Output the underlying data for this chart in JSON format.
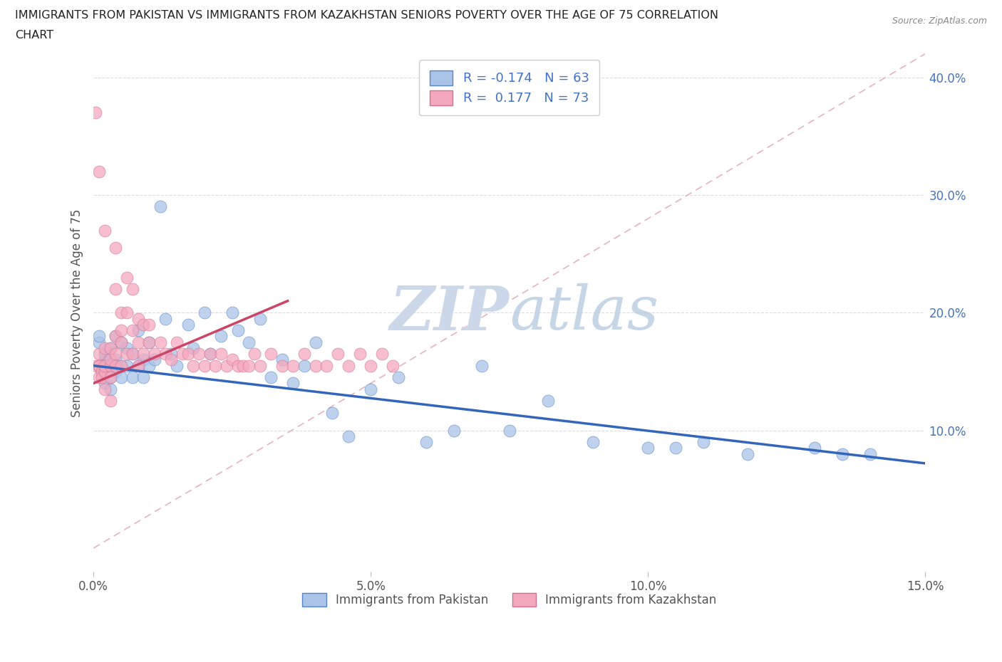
{
  "title_line1": "IMMIGRANTS FROM PAKISTAN VS IMMIGRANTS FROM KAZAKHSTAN SENIORS POVERTY OVER THE AGE OF 75 CORRELATION",
  "title_line2": "CHART",
  "source": "Source: ZipAtlas.com",
  "ylabel": "Seniors Poverty Over the Age of 75",
  "legend_r1": "R = -0.174",
  "legend_n1": "N = 63",
  "legend_r2": "R =  0.177",
  "legend_n2": "N = 73",
  "pakistan_color": "#aac4e8",
  "kazakhstan_color": "#f4a8be",
  "pakistan_edge_color": "#5585c8",
  "kazakhstan_edge_color": "#d07090",
  "pakistan_trend_color": "#3366bb",
  "kazakhstan_trend_color": "#cc4466",
  "ref_line_color": "#e0a0b0",
  "watermark_color": "#ccd8ea",
  "background_color": "#ffffff",
  "grid_color": "#dddddd",
  "title_color": "#222222",
  "axis_color": "#555555",
  "right_axis_color": "#4472c4",
  "xlim": [
    0.0,
    0.15
  ],
  "ylim": [
    -0.02,
    0.42
  ],
  "xticks": [
    0.0,
    0.05,
    0.1,
    0.15
  ],
  "xticklabels": [
    "0.0%",
    "5.0%",
    "10.0%",
    "15.0%"
  ],
  "yticks": [
    0.1,
    0.2,
    0.3,
    0.4
  ],
  "yticklabels": [
    "10.0%",
    "20.0%",
    "30.0%",
    "40.0%"
  ],
  "pakistan_x": [
    0.001,
    0.001,
    0.001,
    0.002,
    0.002,
    0.002,
    0.002,
    0.003,
    0.003,
    0.003,
    0.003,
    0.004,
    0.004,
    0.004,
    0.005,
    0.005,
    0.005,
    0.006,
    0.006,
    0.007,
    0.007,
    0.008,
    0.008,
    0.009,
    0.009,
    0.01,
    0.01,
    0.011,
    0.012,
    0.013,
    0.014,
    0.015,
    0.017,
    0.018,
    0.02,
    0.021,
    0.023,
    0.025,
    0.026,
    0.028,
    0.03,
    0.032,
    0.034,
    0.036,
    0.038,
    0.04,
    0.043,
    0.046,
    0.05,
    0.055,
    0.06,
    0.065,
    0.07,
    0.075,
    0.082,
    0.09,
    0.1,
    0.105,
    0.11,
    0.118,
    0.13,
    0.135,
    0.14
  ],
  "pakistan_y": [
    0.155,
    0.175,
    0.18,
    0.16,
    0.15,
    0.14,
    0.165,
    0.155,
    0.17,
    0.145,
    0.135,
    0.16,
    0.18,
    0.15,
    0.175,
    0.155,
    0.145,
    0.17,
    0.155,
    0.165,
    0.145,
    0.185,
    0.155,
    0.16,
    0.145,
    0.175,
    0.155,
    0.16,
    0.29,
    0.195,
    0.165,
    0.155,
    0.19,
    0.17,
    0.2,
    0.165,
    0.18,
    0.2,
    0.185,
    0.175,
    0.195,
    0.145,
    0.16,
    0.14,
    0.155,
    0.175,
    0.115,
    0.095,
    0.135,
    0.145,
    0.09,
    0.1,
    0.155,
    0.1,
    0.125,
    0.09,
    0.085,
    0.085,
    0.09,
    0.08,
    0.085,
    0.08,
    0.08
  ],
  "kazakhstan_x": [
    0.0003,
    0.0005,
    0.001,
    0.001,
    0.001,
    0.001,
    0.001,
    0.0015,
    0.0015,
    0.002,
    0.002,
    0.002,
    0.002,
    0.002,
    0.003,
    0.003,
    0.003,
    0.003,
    0.003,
    0.004,
    0.004,
    0.004,
    0.004,
    0.004,
    0.005,
    0.005,
    0.005,
    0.005,
    0.006,
    0.006,
    0.006,
    0.007,
    0.007,
    0.007,
    0.008,
    0.008,
    0.008,
    0.009,
    0.009,
    0.01,
    0.01,
    0.011,
    0.012,
    0.013,
    0.014,
    0.015,
    0.016,
    0.017,
    0.018,
    0.019,
    0.02,
    0.021,
    0.022,
    0.023,
    0.024,
    0.025,
    0.026,
    0.027,
    0.028,
    0.029,
    0.03,
    0.032,
    0.034,
    0.036,
    0.038,
    0.04,
    0.042,
    0.044,
    0.046,
    0.048,
    0.05,
    0.052,
    0.054
  ],
  "kazakhstan_y": [
    0.37,
    0.155,
    0.155,
    0.145,
    0.165,
    0.32,
    0.155,
    0.15,
    0.145,
    0.135,
    0.15,
    0.17,
    0.155,
    0.27,
    0.155,
    0.16,
    0.17,
    0.145,
    0.125,
    0.18,
    0.22,
    0.165,
    0.155,
    0.255,
    0.185,
    0.2,
    0.155,
    0.175,
    0.2,
    0.165,
    0.23,
    0.165,
    0.22,
    0.185,
    0.175,
    0.195,
    0.155,
    0.19,
    0.165,
    0.19,
    0.175,
    0.165,
    0.175,
    0.165,
    0.16,
    0.175,
    0.165,
    0.165,
    0.155,
    0.165,
    0.155,
    0.165,
    0.155,
    0.165,
    0.155,
    0.16,
    0.155,
    0.155,
    0.155,
    0.165,
    0.155,
    0.165,
    0.155,
    0.155,
    0.165,
    0.155,
    0.155,
    0.165,
    0.155,
    0.165,
    0.155,
    0.165,
    0.155
  ]
}
